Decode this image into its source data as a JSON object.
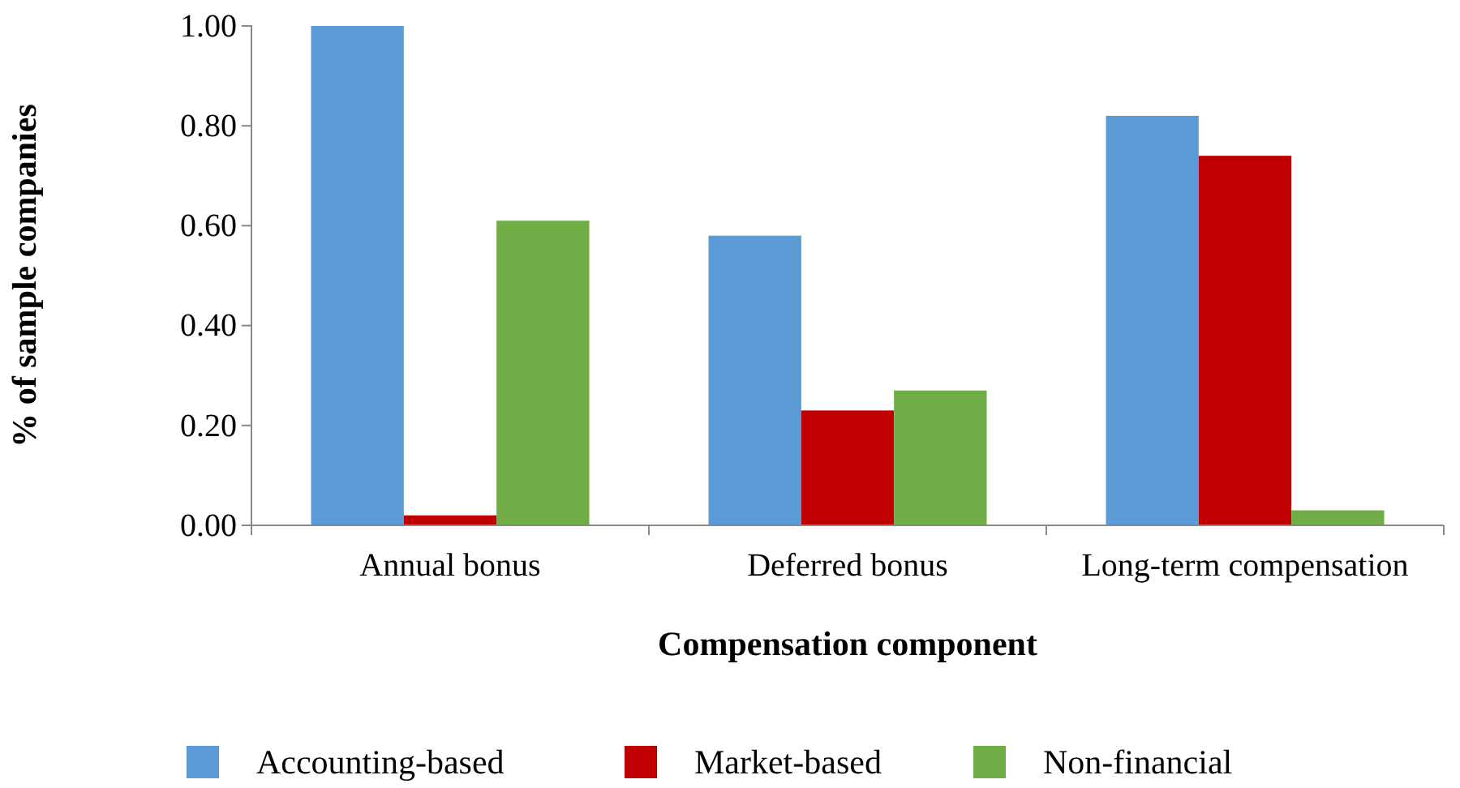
{
  "chart_data": {
    "type": "bar",
    "xlabel": "Compensation component",
    "ylabel": "% of sample companies",
    "categories": [
      "Annual bonus",
      "Deferred bonus",
      "Long-term compensation"
    ],
    "series": [
      {
        "name": "Accounting-based",
        "color": "#5b9bd5",
        "values": [
          1.0,
          0.58,
          0.82
        ]
      },
      {
        "name": "Market-based",
        "color": "#c00000",
        "values": [
          0.02,
          0.23,
          0.74
        ]
      },
      {
        "name": "Non-financial",
        "color": "#70ad47",
        "values": [
          0.61,
          0.27,
          0.03
        ]
      }
    ],
    "ylim": [
      0,
      1
    ],
    "yticks": [
      {
        "value": 0,
        "label": "0.00"
      },
      {
        "value": 0.2,
        "label": "0.20"
      },
      {
        "value": 0.4,
        "label": "0.40"
      },
      {
        "value": 0.6,
        "label": "0.60"
      },
      {
        "value": 0.8,
        "label": "0.80"
      },
      {
        "value": 1,
        "label": "1.00"
      }
    ],
    "grid": false,
    "legend": "bottom"
  }
}
